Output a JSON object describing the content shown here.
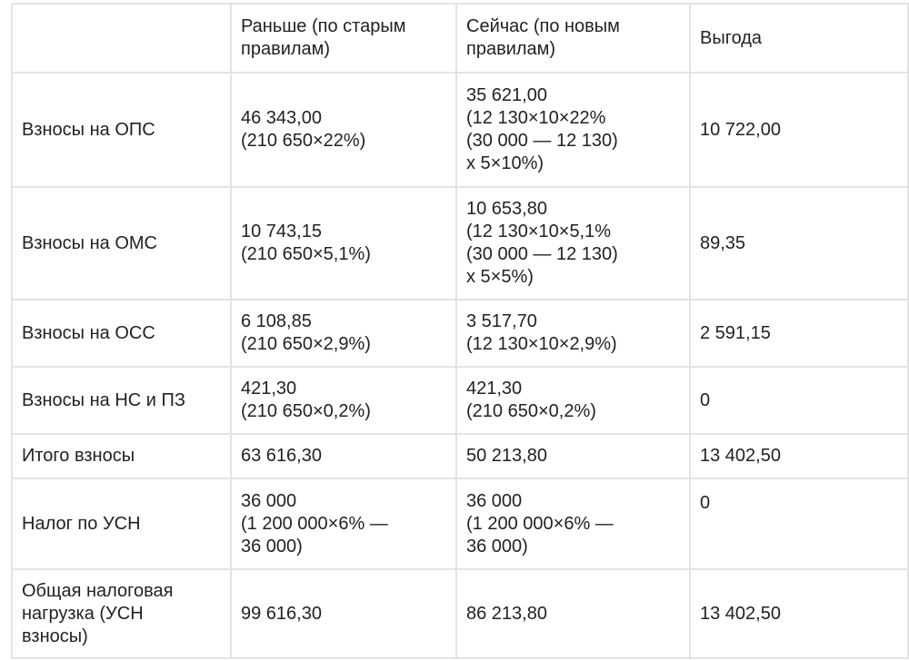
{
  "header": {
    "col1": "",
    "col2": "Раньше (по старым\nправилам)",
    "col3": "Сейчас (по новым\nправилам)",
    "col4": "Выгода"
  },
  "rows": [
    {
      "label": "Взносы на ОПС",
      "old": "46 343,00\n(210 650×22%)",
      "new": "35 621,00\n(12 130×10×22%\n(30 000 — 12 130)\nx 5×10%)",
      "benefit": "10 722,00"
    },
    {
      "label": "Взносы на ОМС",
      "old": "10 743,15\n(210 650×5,1%)",
      "new": "10 653,80\n(12 130×10×5,1%\n(30 000 — 12 130)\nx 5×5%)",
      "benefit": "89,35"
    },
    {
      "label": "Взносы на ОСС",
      "old": "6 108,85\n(210 650×2,9%)",
      "new": "3 517,70\n(12 130×10×2,9%)",
      "benefit": "2 591,15"
    },
    {
      "label": "Взносы на НС и ПЗ",
      "old": "421,30\n(210 650×0,2%)",
      "new": "421,30\n(210 650×0,2%)",
      "benefit": "0"
    },
    {
      "label": "Итого взносы",
      "old": "63 616,30",
      "new": "50 213,80",
      "benefit": "13 402,50"
    },
    {
      "label": "Налог по УСН",
      "old": "36 000\n(1 200 000×6% —\n36 000)",
      "new": "36 000\n(1 200 000×6% —\n36 000)",
      "benefit": "0"
    },
    {
      "label": "Общая налоговая\nнагрузка (УСН\nвзносы)",
      "old": "99 616,30",
      "new": "86 213,80",
      "benefit": "13 402,50"
    }
  ]
}
